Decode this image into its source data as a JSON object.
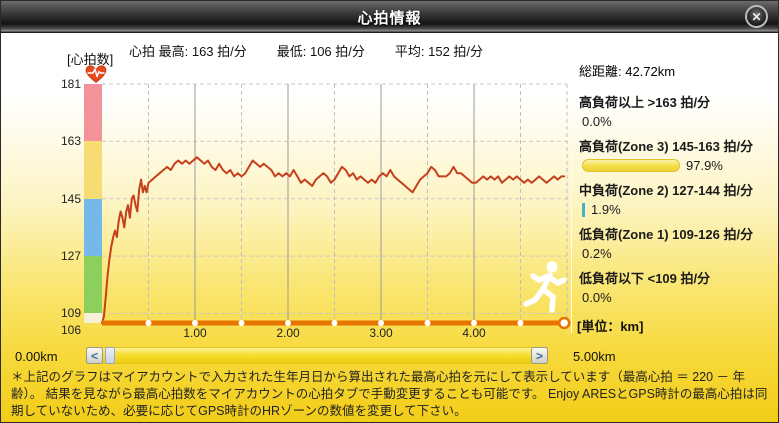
{
  "title_bar": {
    "title": "心拍情報",
    "close_icon": "✕"
  },
  "stats": {
    "max": "心拍 最高: 163 拍/分",
    "min": "最低: 106 拍/分",
    "avg": "平均: 152 拍/分"
  },
  "y_axis": {
    "label": "[心拍数]"
  },
  "x_axis": {
    "ticks": [
      "1.00",
      "2.00",
      "3.00",
      "4.00"
    ],
    "unit_label": "[単位：km]"
  },
  "scrollbar": {
    "start_label": "0.00km",
    "end_label": "5.00km",
    "left_arrow": "<",
    "right_arrow": ">"
  },
  "right_panel": {
    "total_distance": "総距離: 42.72km",
    "zones": [
      {
        "name": "高負荷以上 >163 拍/分",
        "pct": "0.0%",
        "pct_value": 0.0,
        "bar": "none"
      },
      {
        "name": "高負荷(Zone 3)  145-163 拍/分",
        "pct": "97.9%",
        "pct_value": 97.9,
        "bar": "pill"
      },
      {
        "name": "中負荷(Zone 2) 127-144 拍/分",
        "pct": "1.9%",
        "pct_value": 1.9,
        "bar": "tick"
      },
      {
        "name": "低負荷(Zone 1) 109-126 拍/分",
        "pct": "0.2%",
        "pct_value": 0.2,
        "bar": "none"
      },
      {
        "name": "低負荷以下 <109 拍/分",
        "pct": "0.0%",
        "pct_value": 0.0,
        "bar": "none"
      }
    ]
  },
  "footer_note": "＊上記のグラフはマイアカウントで入力された生年月日から算出された最高心拍を元にして表示しています（最高心拍 ＝ 220 － 年齢）。 結果を見ながら最高心拍数をマイアカウントの心拍タブで手動変更することも可能です。 Enjoy ARESとGPS時計の最高心拍は同期していないため、必要に応じてGPS時計のHRゾーンの数値を変更して下さい。",
  "colors": {
    "hr_line": "#c5401d",
    "baseline": "#e87400",
    "grid_dashed": "#c9c9c9",
    "grid_solid": "#9a9a9a",
    "zone3_bar": "#f4dd45",
    "zone2_bar": "#46b3c4"
  },
  "chart_data": {
    "type": "line",
    "title": "心拍情報",
    "xlabel": "km",
    "ylabel": "心拍数 (拍/分)",
    "xlim": [
      0,
      5
    ],
    "ylim": [
      106,
      181
    ],
    "y_gridlines": [
      181,
      163,
      145,
      127,
      109
    ],
    "y_baseline": 106,
    "x_solid_gridlines": [
      1,
      2,
      3,
      4
    ],
    "x_dashed_gridlines": [
      0.5,
      1.5,
      2.5,
      3.5,
      4.5,
      5
    ],
    "marker_interval_km": 0.5,
    "legend_position": "none",
    "grid": true,
    "zone_bands": [
      {
        "from": 163,
        "to": 181,
        "color": "#f19399"
      },
      {
        "from": 145,
        "to": 163,
        "color": "#f6dc73"
      },
      {
        "from": 127,
        "to": 145,
        "color": "#74b9e9"
      },
      {
        "from": 109,
        "to": 127,
        "color": "#8ccf5d"
      },
      {
        "from": 106,
        "to": 109,
        "color": "#f8f1d8"
      }
    ],
    "series": [
      {
        "name": "心拍",
        "color": "#c5401d",
        "points": [
          [
            0,
            106
          ],
          [
            0.02,
            108
          ],
          [
            0.04,
            114
          ],
          [
            0.06,
            121
          ],
          [
            0.08,
            126
          ],
          [
            0.1,
            130
          ],
          [
            0.12,
            133
          ],
          [
            0.14,
            135
          ],
          [
            0.16,
            133
          ],
          [
            0.18,
            138
          ],
          [
            0.2,
            141
          ],
          [
            0.22,
            139
          ],
          [
            0.24,
            136
          ],
          [
            0.26,
            141
          ],
          [
            0.28,
            143
          ],
          [
            0.3,
            139
          ],
          [
            0.32,
            145
          ],
          [
            0.34,
            146
          ],
          [
            0.36,
            143
          ],
          [
            0.38,
            141
          ],
          [
            0.4,
            148
          ],
          [
            0.42,
            151
          ],
          [
            0.44,
            147
          ],
          [
            0.46,
            149
          ],
          [
            0.48,
            147
          ],
          [
            0.5,
            150
          ],
          [
            0.54,
            151
          ],
          [
            0.58,
            152
          ],
          [
            0.62,
            153
          ],
          [
            0.66,
            154
          ],
          [
            0.7,
            155
          ],
          [
            0.74,
            154
          ],
          [
            0.78,
            156
          ],
          [
            0.82,
            157
          ],
          [
            0.86,
            156
          ],
          [
            0.9,
            157
          ],
          [
            0.94,
            156
          ],
          [
            0.98,
            157
          ],
          [
            1.02,
            158
          ],
          [
            1.06,
            157
          ],
          [
            1.1,
            156
          ],
          [
            1.14,
            157
          ],
          [
            1.18,
            155
          ],
          [
            1.22,
            154
          ],
          [
            1.26,
            156
          ],
          [
            1.3,
            154
          ],
          [
            1.34,
            153
          ],
          [
            1.38,
            154
          ],
          [
            1.42,
            152
          ],
          [
            1.46,
            153
          ],
          [
            1.5,
            152
          ],
          [
            1.54,
            153
          ],
          [
            1.58,
            155
          ],
          [
            1.62,
            157
          ],
          [
            1.66,
            156
          ],
          [
            1.7,
            155
          ],
          [
            1.74,
            156
          ],
          [
            1.78,
            155
          ],
          [
            1.82,
            154
          ],
          [
            1.86,
            152
          ],
          [
            1.9,
            153
          ],
          [
            1.94,
            152
          ],
          [
            1.98,
            153
          ],
          [
            2.02,
            152
          ],
          [
            2.06,
            154
          ],
          [
            2.1,
            152
          ],
          [
            2.14,
            150
          ],
          [
            2.18,
            151
          ],
          [
            2.22,
            150
          ],
          [
            2.26,
            149
          ],
          [
            2.3,
            151
          ],
          [
            2.34,
            152
          ],
          [
            2.38,
            153
          ],
          [
            2.42,
            152
          ],
          [
            2.46,
            150
          ],
          [
            2.5,
            151
          ],
          [
            2.54,
            153
          ],
          [
            2.58,
            155
          ],
          [
            2.62,
            154
          ],
          [
            2.66,
            152
          ],
          [
            2.7,
            153
          ],
          [
            2.74,
            151
          ],
          [
            2.78,
            152
          ],
          [
            2.82,
            151
          ],
          [
            2.86,
            150
          ],
          [
            2.9,
            151
          ],
          [
            2.94,
            150
          ],
          [
            2.98,
            152
          ],
          [
            3.02,
            153
          ],
          [
            3.06,
            152
          ],
          [
            3.1,
            154
          ],
          [
            3.14,
            152
          ],
          [
            3.18,
            151
          ],
          [
            3.22,
            150
          ],
          [
            3.26,
            149
          ],
          [
            3.3,
            148
          ],
          [
            3.34,
            147
          ],
          [
            3.38,
            149
          ],
          [
            3.42,
            151
          ],
          [
            3.46,
            152
          ],
          [
            3.5,
            153
          ],
          [
            3.54,
            155
          ],
          [
            3.58,
            154
          ],
          [
            3.62,
            152
          ],
          [
            3.66,
            152
          ],
          [
            3.7,
            152
          ],
          [
            3.74,
            153
          ],
          [
            3.78,
            155
          ],
          [
            3.82,
            153
          ],
          [
            3.86,
            153
          ],
          [
            3.9,
            152
          ],
          [
            3.94,
            151
          ],
          [
            3.98,
            150
          ],
          [
            4.02,
            150
          ],
          [
            4.06,
            151
          ],
          [
            4.1,
            152
          ],
          [
            4.14,
            151
          ],
          [
            4.18,
            152
          ],
          [
            4.22,
            151
          ],
          [
            4.26,
            152
          ],
          [
            4.3,
            150
          ],
          [
            4.34,
            151
          ],
          [
            4.38,
            152
          ],
          [
            4.42,
            151
          ],
          [
            4.46,
            152
          ],
          [
            4.5,
            151
          ],
          [
            4.54,
            150
          ],
          [
            4.58,
            151
          ],
          [
            4.62,
            150
          ],
          [
            4.66,
            151
          ],
          [
            4.7,
            152
          ],
          [
            4.74,
            151
          ],
          [
            4.78,
            150
          ],
          [
            4.82,
            151
          ],
          [
            4.86,
            152
          ],
          [
            4.9,
            151
          ],
          [
            4.94,
            152
          ],
          [
            4.97,
            152
          ]
        ]
      }
    ]
  }
}
